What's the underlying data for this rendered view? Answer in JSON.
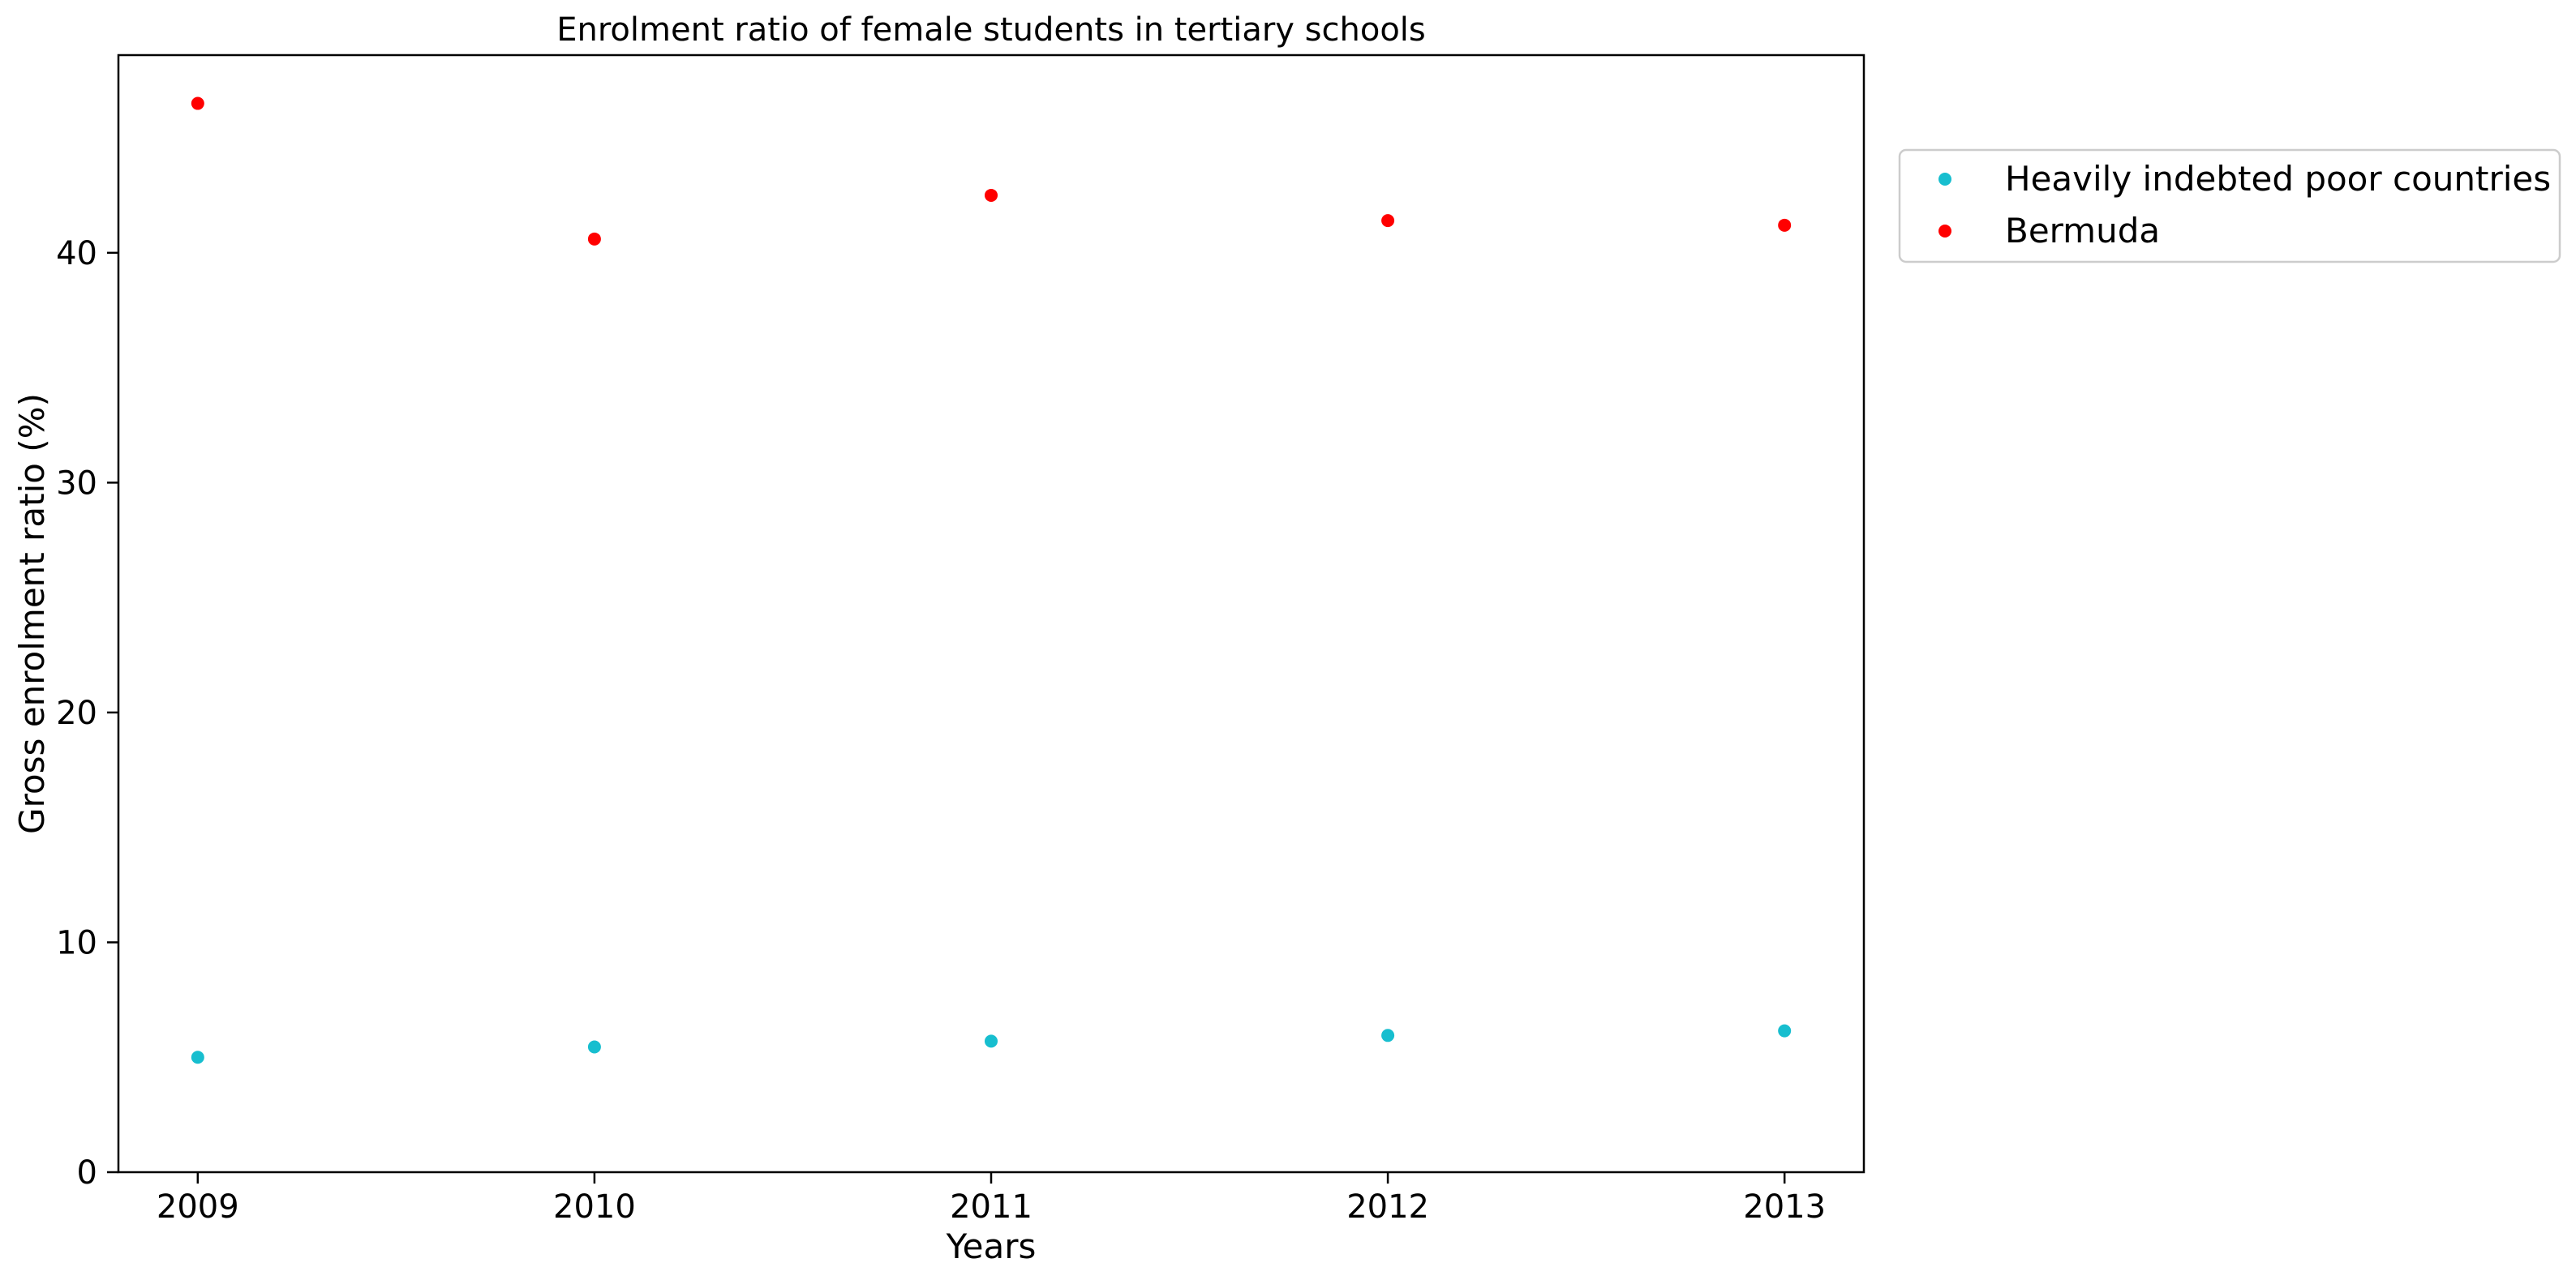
{
  "chart_data": {
    "type": "scatter",
    "title": "Enrolment ratio of female students in tertiary schools",
    "xlabel": "Years",
    "ylabel": "Gross enrolment ratio (%)",
    "x": [
      2009,
      2010,
      2011,
      2012,
      2013
    ],
    "x_tick_labels": [
      "2009",
      "2010",
      "2011",
      "2012",
      "2013"
    ],
    "y_ticks": [
      0,
      10,
      20,
      30,
      40
    ],
    "y_tick_labels": [
      "0",
      "10",
      "20",
      "30",
      "40"
    ],
    "xlim": [
      2008.8,
      2013.2
    ],
    "ylim": [
      0,
      48.6
    ],
    "grid": false,
    "legend_position": "outside-top-right",
    "series": [
      {
        "name": "Heavily indebted poor countries",
        "color": "#17becf",
        "values": [
          5.0,
          5.45,
          5.7,
          5.95,
          6.15
        ]
      },
      {
        "name": "Bermuda",
        "color": "#ff0000",
        "values": [
          46.5,
          40.6,
          42.5,
          41.4,
          41.2
        ]
      }
    ]
  }
}
